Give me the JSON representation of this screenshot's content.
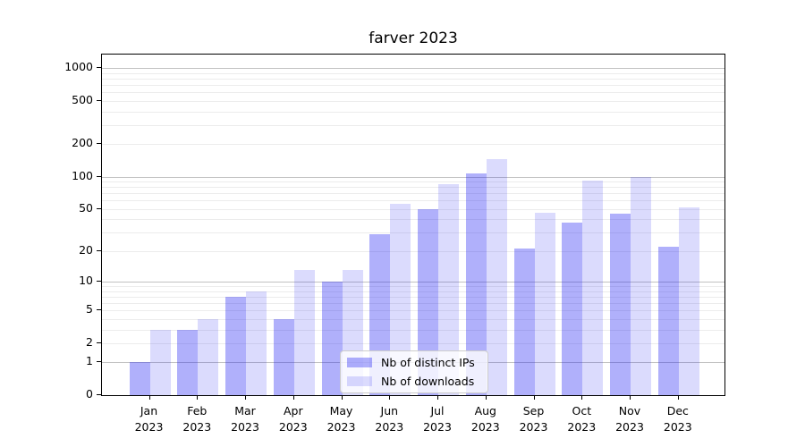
{
  "figure": {
    "title": "farver 2023"
  },
  "chart_data": {
    "type": "bar",
    "title": "farver 2023",
    "xlabel": "",
    "ylabel": "",
    "yscale": "log1p",
    "ylim": [
      0,
      1330
    ],
    "grid": true,
    "legend_position": "inside plot, lower center",
    "year": "2023",
    "categories": [
      "Jan",
      "Feb",
      "Mar",
      "Apr",
      "May",
      "Jun",
      "Jul",
      "Aug",
      "Sep",
      "Oct",
      "Nov",
      "Dec"
    ],
    "yticks": [
      1000,
      500,
      200,
      100,
      50,
      20,
      10,
      5,
      2,
      1,
      0
    ],
    "series": [
      {
        "name": "Nb of distinct IPs",
        "color": "rgba(30,30,243,0.35)",
        "values": [
          1,
          3,
          7,
          4,
          10,
          29,
          50,
          108,
          21,
          37,
          45,
          22
        ]
      },
      {
        "name": "Nb of downloads",
        "color": "rgba(30,30,243,0.16)",
        "values": [
          3,
          4,
          8,
          13,
          13,
          56,
          85,
          145,
          46,
          92,
          99,
          52
        ]
      }
    ]
  }
}
